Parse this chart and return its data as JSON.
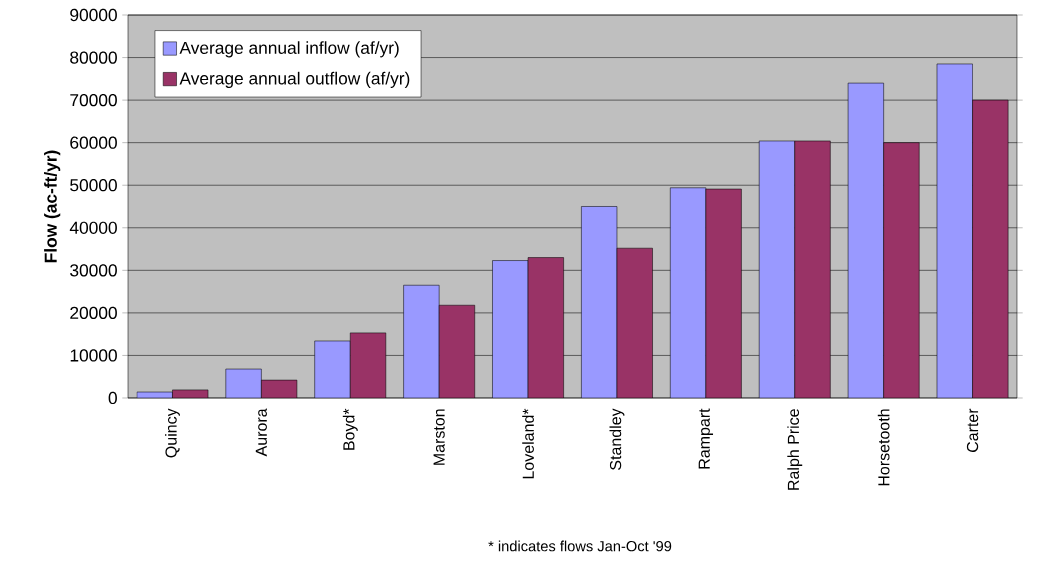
{
  "chart_data": {
    "type": "bar",
    "ylabel": "Flow (ac-ft/yr)",
    "categories": [
      "Quincy",
      "Aurora",
      "Boyd*",
      "Marston",
      "Loveland*",
      "Standley",
      "Rampart",
      "Ralph Price",
      "Horsetooth",
      "Carter"
    ],
    "series": [
      {
        "name": "Average annual inflow (af/yr)",
        "color": "#9999ff",
        "values": [
          1400,
          6800,
          13400,
          26500,
          32300,
          45000,
          49400,
          60400,
          74000,
          78500
        ]
      },
      {
        "name": "Average annual outflow (af/yr)",
        "color": "#993366",
        "values": [
          1900,
          4200,
          15300,
          21800,
          33000,
          35200,
          49100,
          60400,
          60000,
          70000
        ]
      }
    ],
    "ylim": [
      0,
      90000
    ],
    "yticks": [
      0,
      10000,
      20000,
      30000,
      40000,
      50000,
      60000,
      70000,
      80000,
      90000
    ],
    "grid": "y",
    "legend": "top left",
    "annotations": [
      "* indicates flows Jan-Oct '99"
    ]
  }
}
